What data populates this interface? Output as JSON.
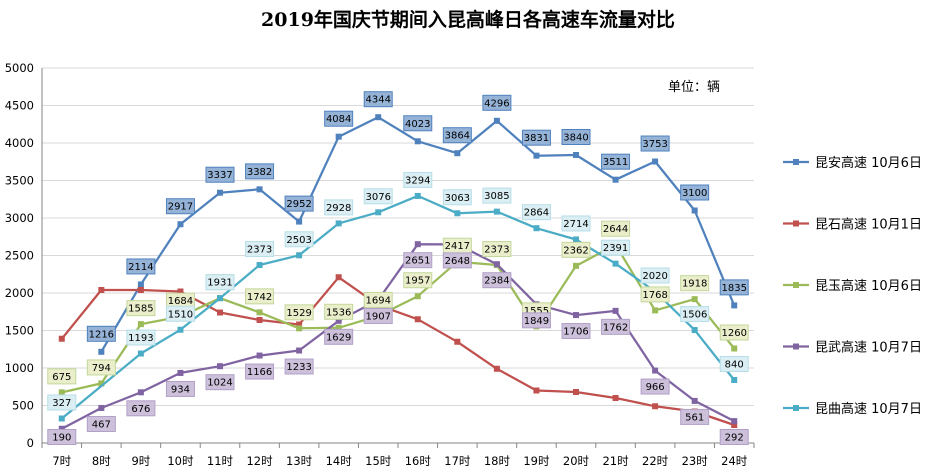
{
  "chart_data": {
    "type": "line",
    "title": "2019年国庆节期间入昆高峰日各高速车流量对比",
    "unit_label": "单位：辆",
    "ylim": [
      0,
      5000
    ],
    "yticks": [
      0,
      500,
      1000,
      1500,
      2000,
      2500,
      3000,
      3500,
      4000,
      4500,
      5000
    ],
    "grid": true,
    "legend_position": "right",
    "categories": [
      "7时",
      "8时",
      "9时",
      "10时",
      "11时",
      "12时",
      "13时",
      "14时",
      "15时",
      "16时",
      "17时",
      "18时",
      "19时",
      "20时",
      "21时",
      "22时",
      "23时",
      "24时"
    ],
    "series": [
      {
        "name": "昆安高速 10月6日",
        "color": "#4f81bd",
        "label_bg": "#95b3d7",
        "label_border": "#4f81bd",
        "labeled": true,
        "values": [
          null,
          1216,
          2114,
          2917,
          3337,
          3382,
          2952,
          4084,
          4344,
          4023,
          3864,
          4296,
          3831,
          3840,
          3511,
          3753,
          3100,
          1835
        ]
      },
      {
        "name": "昆石高速 10月1日",
        "color": "#c0504d",
        "labeled": false,
        "values": [
          1390,
          2040,
          2040,
          2020,
          1740,
          1640,
          1580,
          2210,
          1840,
          1650,
          1350,
          990,
          700,
          680,
          600,
          490,
          420,
          240
        ]
      },
      {
        "name": "昆玉高速 10月6日",
        "color": "#9bbb59",
        "label_bg": "#eaeecb",
        "label_border": "#c4d79b",
        "labeled": true,
        "values": [
          675,
          794,
          1585,
          1684,
          1931,
          1742,
          1529,
          1536,
          1694,
          1957,
          2417,
          2373,
          1555,
          2362,
          2644,
          1768,
          1918,
          1260
        ]
      },
      {
        "name": "昆武高速 10月7日",
        "color": "#8064a2",
        "label_bg": "#ccc0da",
        "label_border": "#b1a0c7",
        "labeled": true,
        "values": [
          190,
          467,
          676,
          934,
          1024,
          1166,
          1233,
          1629,
          1907,
          2651,
          2648,
          2384,
          1849,
          1706,
          1762,
          966,
          561,
          292
        ]
      },
      {
        "name": "昆曲高速 10月7日",
        "color": "#4bacc6",
        "label_bg": "#daeef3",
        "label_border": "#b7dee8",
        "labeled": true,
        "values": [
          327,
          null,
          1193,
          1510,
          1931,
          2373,
          2503,
          2928,
          3076,
          3294,
          3063,
          3085,
          2864,
          2714,
          2391,
          2020,
          1506,
          840
        ]
      }
    ]
  }
}
